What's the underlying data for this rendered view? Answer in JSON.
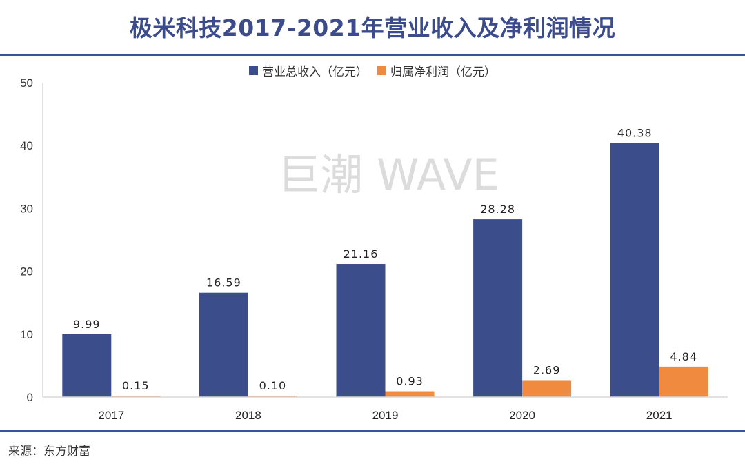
{
  "title": "极米科技2017-2021年营业收入及净利润情况",
  "source": "来源：东方财富",
  "watermark": "巨潮 WAVE",
  "colors": {
    "title": "#3b4b8c",
    "rule": "#3e5299",
    "revenue": "#3c4d8b",
    "profit": "#f08a3e",
    "axis": "#d9d9d9"
  },
  "legend": [
    {
      "label": "营业总收入（亿元）",
      "series": 0
    },
    {
      "label": "归属净利润（亿元）",
      "series": 1
    }
  ],
  "chart_data": {
    "type": "bar",
    "title": "极米科技2017-2021年营业收入及净利润情况",
    "xlabel": "",
    "ylabel": "",
    "categories": [
      "2017",
      "2018",
      "2019",
      "2020",
      "2021"
    ],
    "series": [
      {
        "name": "营业总收入（亿元）",
        "values": [
          9.99,
          16.59,
          21.16,
          28.28,
          40.38
        ],
        "labels": [
          "9.99",
          "16.59",
          "21.16",
          "28.28",
          "40.38"
        ]
      },
      {
        "name": "归属净利润（亿元）",
        "values": [
          0.15,
          0.1,
          0.93,
          2.69,
          4.84
        ],
        "labels": [
          "0.15",
          "0.10",
          "0.93",
          "2.69",
          "4.84"
        ]
      }
    ],
    "ylim": [
      0,
      50
    ],
    "yticks": [
      0,
      10,
      20,
      30,
      40,
      50
    ],
    "grid": false,
    "legend_position": "top-center",
    "data_labels": true
  }
}
